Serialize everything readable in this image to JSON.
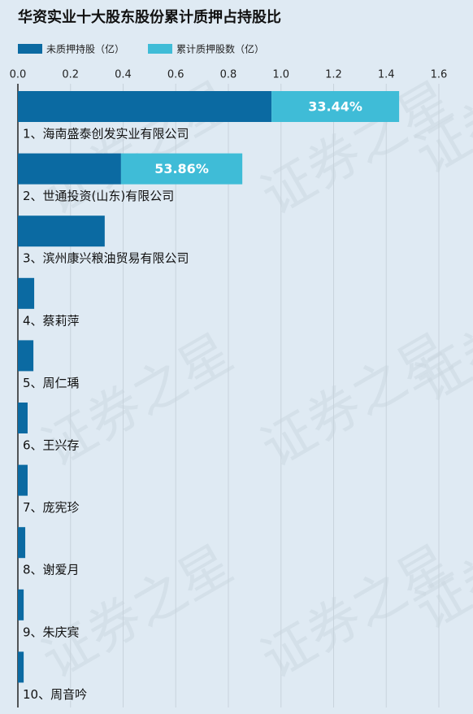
{
  "chart_data": {
    "type": "bar",
    "orientation": "horizontal",
    "stacked": true,
    "title": "华资实业十大股东股份累计质押占持股比",
    "watermark": "证券之星",
    "categories": [
      "1、海南盛泰创发实业有限公司",
      "2、世通投资(山东)有限公司",
      "3、滨州康兴粮油贸易有限公司",
      "4、蔡莉萍",
      "5、周仁瑀",
      "6、王兴存",
      "7、庞宪珍",
      "8、谢爱月",
      "9、朱庆宾",
      "10、周音吟"
    ],
    "series": [
      {
        "name": "未质押持股（亿）",
        "color": "#0b6aa2",
        "values": [
          0.964,
          0.392,
          0.33,
          0.062,
          0.059,
          0.037,
          0.037,
          0.028,
          0.022,
          0.022
        ]
      },
      {
        "name": "累计质押股数（亿）",
        "color": "#3fbcd7",
        "values": [
          0.485,
          0.461,
          null,
          null,
          null,
          null,
          null,
          null,
          null,
          null
        ]
      }
    ],
    "pledge_ratios": [
      {
        "value": 33.44,
        "label": "33.44%"
      },
      {
        "value": 53.86,
        "label": "53.86%"
      }
    ],
    "xlim": [
      0,
      1.6
    ],
    "xticks": [
      {
        "value": 0,
        "label": "0.0"
      },
      0.2,
      0.4,
      0.6,
      0.8,
      {
        "value": 1,
        "label": "1.0"
      },
      1.2,
      1.4,
      1.6
    ],
    "grid": true,
    "legend": "top-left"
  }
}
